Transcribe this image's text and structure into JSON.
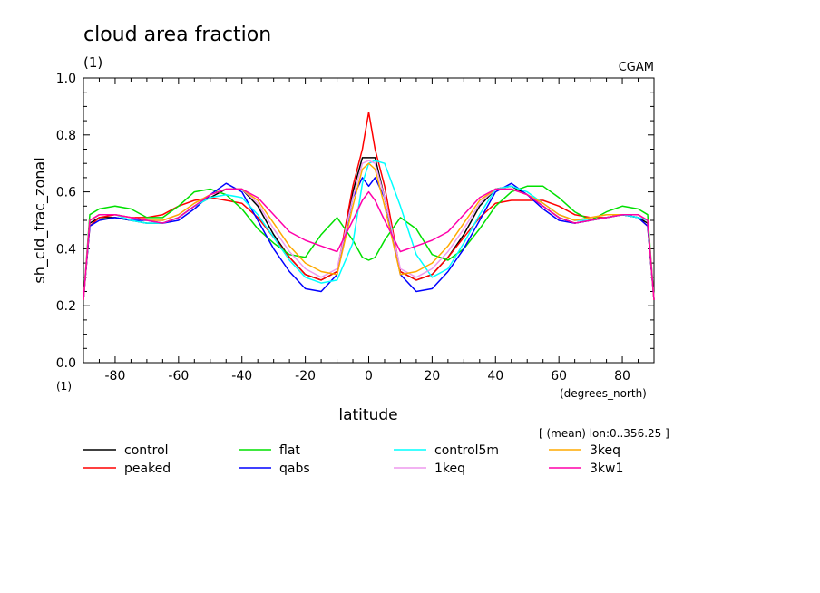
{
  "header": {
    "title": "cloud area fraction",
    "units_left": "(1)",
    "model": "CGAM"
  },
  "axis_units": {
    "y_units": "(1)",
    "x_units": "(degrees_north)"
  },
  "mean_note": "[ (mean) lon:0..356.25 ]",
  "chart_data": {
    "type": "line",
    "title": "cloud area fraction",
    "xlabel": "latitude",
    "ylabel": "sh_cld_frac_zonal",
    "xlim": [
      -90,
      90
    ],
    "ylim": [
      0.0,
      1.0
    ],
    "x_ticks": [
      -80,
      -60,
      -40,
      -20,
      0,
      20,
      40,
      60,
      80
    ],
    "x_tick_labels": [
      "-80",
      "-60",
      "-40",
      "-20",
      "0",
      "20",
      "40",
      "60",
      "80"
    ],
    "y_ticks": [
      0.0,
      0.2,
      0.4,
      0.6,
      0.8,
      1.0
    ],
    "y_tick_labels": [
      "0.0",
      "0.2",
      "0.4",
      "0.6",
      "0.8",
      "1.0"
    ],
    "grid": false,
    "legend_position": "bottom",
    "x": [
      -90,
      -88,
      -85,
      -80,
      -75,
      -70,
      -65,
      -60,
      -55,
      -50,
      -45,
      -40,
      -35,
      -30,
      -25,
      -20,
      -15,
      -10,
      -5,
      -2,
      0,
      2,
      5,
      10,
      15,
      20,
      25,
      30,
      35,
      40,
      45,
      50,
      55,
      60,
      65,
      70,
      75,
      80,
      85,
      88,
      90
    ],
    "series": [
      {
        "name": "control",
        "color": "#000000",
        "values": [
          0.22,
          0.49,
          0.51,
          0.51,
          0.5,
          0.49,
          0.49,
          0.51,
          0.55,
          0.58,
          0.61,
          0.61,
          0.55,
          0.45,
          0.37,
          0.31,
          0.29,
          0.32,
          0.6,
          0.72,
          0.72,
          0.72,
          0.58,
          0.32,
          0.29,
          0.31,
          0.37,
          0.45,
          0.55,
          0.61,
          0.62,
          0.59,
          0.55,
          0.51,
          0.49,
          0.5,
          0.51,
          0.52,
          0.51,
          0.49,
          0.22
        ]
      },
      {
        "name": "peaked",
        "color": "#ff0000",
        "values": [
          0.22,
          0.48,
          0.51,
          0.52,
          0.51,
          0.51,
          0.52,
          0.55,
          0.57,
          0.58,
          0.57,
          0.56,
          0.51,
          0.44,
          0.37,
          0.31,
          0.29,
          0.32,
          0.62,
          0.75,
          0.88,
          0.75,
          0.62,
          0.32,
          0.29,
          0.31,
          0.37,
          0.44,
          0.51,
          0.56,
          0.57,
          0.57,
          0.57,
          0.55,
          0.52,
          0.51,
          0.51,
          0.52,
          0.51,
          0.48,
          0.22
        ]
      },
      {
        "name": "flat",
        "color": "#00e000",
        "values": [
          0.22,
          0.52,
          0.54,
          0.55,
          0.54,
          0.51,
          0.51,
          0.55,
          0.6,
          0.61,
          0.59,
          0.54,
          0.47,
          0.42,
          0.38,
          0.37,
          0.45,
          0.51,
          0.43,
          0.37,
          0.36,
          0.37,
          0.43,
          0.51,
          0.47,
          0.38,
          0.36,
          0.4,
          0.47,
          0.55,
          0.6,
          0.62,
          0.62,
          0.58,
          0.53,
          0.5,
          0.53,
          0.55,
          0.54,
          0.52,
          0.22
        ]
      },
      {
        "name": "qabs",
        "color": "#0000ff",
        "values": [
          0.22,
          0.48,
          0.5,
          0.51,
          0.5,
          0.5,
          0.49,
          0.5,
          0.54,
          0.59,
          0.63,
          0.6,
          0.5,
          0.4,
          0.32,
          0.26,
          0.25,
          0.31,
          0.58,
          0.65,
          0.62,
          0.65,
          0.58,
          0.31,
          0.25,
          0.26,
          0.32,
          0.4,
          0.5,
          0.6,
          0.63,
          0.59,
          0.54,
          0.5,
          0.49,
          0.5,
          0.51,
          0.52,
          0.51,
          0.48,
          0.22
        ]
      },
      {
        "name": "control5m",
        "color": "#00ffff",
        "values": [
          0.22,
          0.5,
          0.52,
          0.52,
          0.5,
          0.49,
          0.49,
          0.51,
          0.55,
          0.58,
          0.59,
          0.58,
          0.52,
          0.44,
          0.36,
          0.3,
          0.28,
          0.29,
          0.42,
          0.63,
          0.7,
          0.71,
          0.7,
          0.55,
          0.38,
          0.3,
          0.33,
          0.42,
          0.52,
          0.61,
          0.62,
          0.6,
          0.56,
          0.52,
          0.5,
          0.5,
          0.51,
          0.52,
          0.51,
          0.5,
          0.22
        ]
      },
      {
        "name": "1keq",
        "color": "#ee99ee",
        "values": [
          0.22,
          0.5,
          0.52,
          0.52,
          0.51,
          0.5,
          0.5,
          0.52,
          0.56,
          0.59,
          0.61,
          0.61,
          0.56,
          0.47,
          0.39,
          0.33,
          0.3,
          0.33,
          0.58,
          0.7,
          0.71,
          0.7,
          0.58,
          0.33,
          0.3,
          0.33,
          0.39,
          0.47,
          0.56,
          0.61,
          0.61,
          0.59,
          0.56,
          0.52,
          0.5,
          0.51,
          0.52,
          0.52,
          0.52,
          0.5,
          0.22
        ]
      },
      {
        "name": "3keq",
        "color": "#ffaa00",
        "values": [
          0.22,
          0.5,
          0.52,
          0.52,
          0.51,
          0.5,
          0.5,
          0.52,
          0.56,
          0.59,
          0.61,
          0.61,
          0.57,
          0.49,
          0.41,
          0.35,
          0.32,
          0.31,
          0.55,
          0.68,
          0.7,
          0.68,
          0.55,
          0.31,
          0.32,
          0.35,
          0.41,
          0.49,
          0.57,
          0.61,
          0.61,
          0.59,
          0.56,
          0.52,
          0.5,
          0.51,
          0.52,
          0.52,
          0.52,
          0.5,
          0.22
        ]
      },
      {
        "name": "3kw1",
        "color": "#ff00aa",
        "values": [
          0.22,
          0.5,
          0.52,
          0.52,
          0.51,
          0.5,
          0.49,
          0.51,
          0.55,
          0.59,
          0.61,
          0.61,
          0.58,
          0.52,
          0.46,
          0.43,
          0.41,
          0.39,
          0.5,
          0.57,
          0.6,
          0.57,
          0.5,
          0.39,
          0.41,
          0.43,
          0.46,
          0.52,
          0.58,
          0.61,
          0.61,
          0.59,
          0.55,
          0.51,
          0.49,
          0.5,
          0.51,
          0.52,
          0.52,
          0.5,
          0.22
        ]
      }
    ]
  },
  "legend": {
    "items": [
      {
        "label": "control",
        "color": "#000000"
      },
      {
        "label": "flat",
        "color": "#00e000"
      },
      {
        "label": "control5m",
        "color": "#00ffff"
      },
      {
        "label": "3keq",
        "color": "#ffaa00"
      },
      {
        "label": "peaked",
        "color": "#ff0000"
      },
      {
        "label": "qabs",
        "color": "#0000ff"
      },
      {
        "label": "1keq",
        "color": "#ee99ee"
      },
      {
        "label": "3kw1",
        "color": "#ff00aa"
      }
    ]
  }
}
